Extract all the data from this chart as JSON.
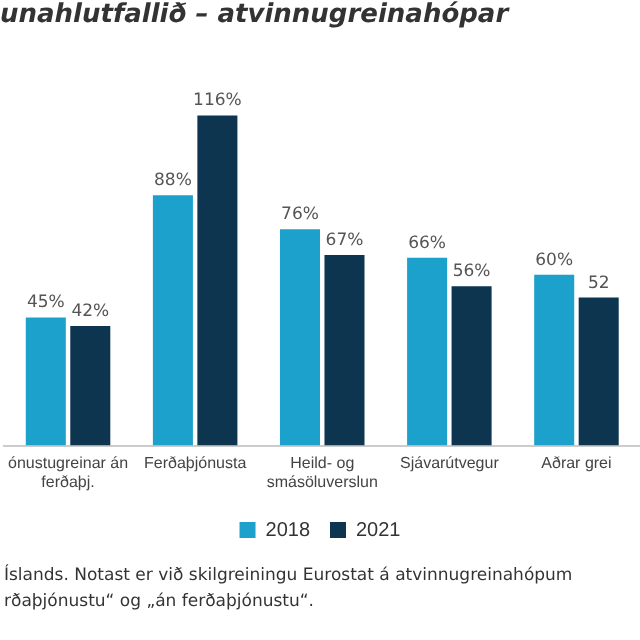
{
  "chart_data": {
    "type": "bar",
    "title": "unahlutfallið – atvinnugreinahópar",
    "categories": [
      "ónustugreinar án ferðaþj.",
      "Ferðaþjónusta",
      "Heild- og smásöluverslun",
      "Sjávarútvegur",
      "Aðrar grei"
    ],
    "series": [
      {
        "name": "2018",
        "color": "#1ba1cb",
        "values": [
          45,
          88,
          76,
          66,
          60
        ],
        "value_labels": [
          "45%",
          "88%",
          "76%",
          "66%",
          "60%"
        ]
      },
      {
        "name": "2021",
        "color": "#0d3550",
        "values": [
          42,
          116,
          67,
          56,
          52
        ],
        "value_labels": [
          "42%",
          "116%",
          "67%",
          "56%",
          "52"
        ]
      }
    ],
    "grid": false,
    "legend": "bottom",
    "annotations": [
      "Íslands. Notast er við skilgreiningu Eurostat á atvinnugreinahópum",
      "rðaþjónustu“ og „án ferðaþjónustu“."
    ]
  }
}
